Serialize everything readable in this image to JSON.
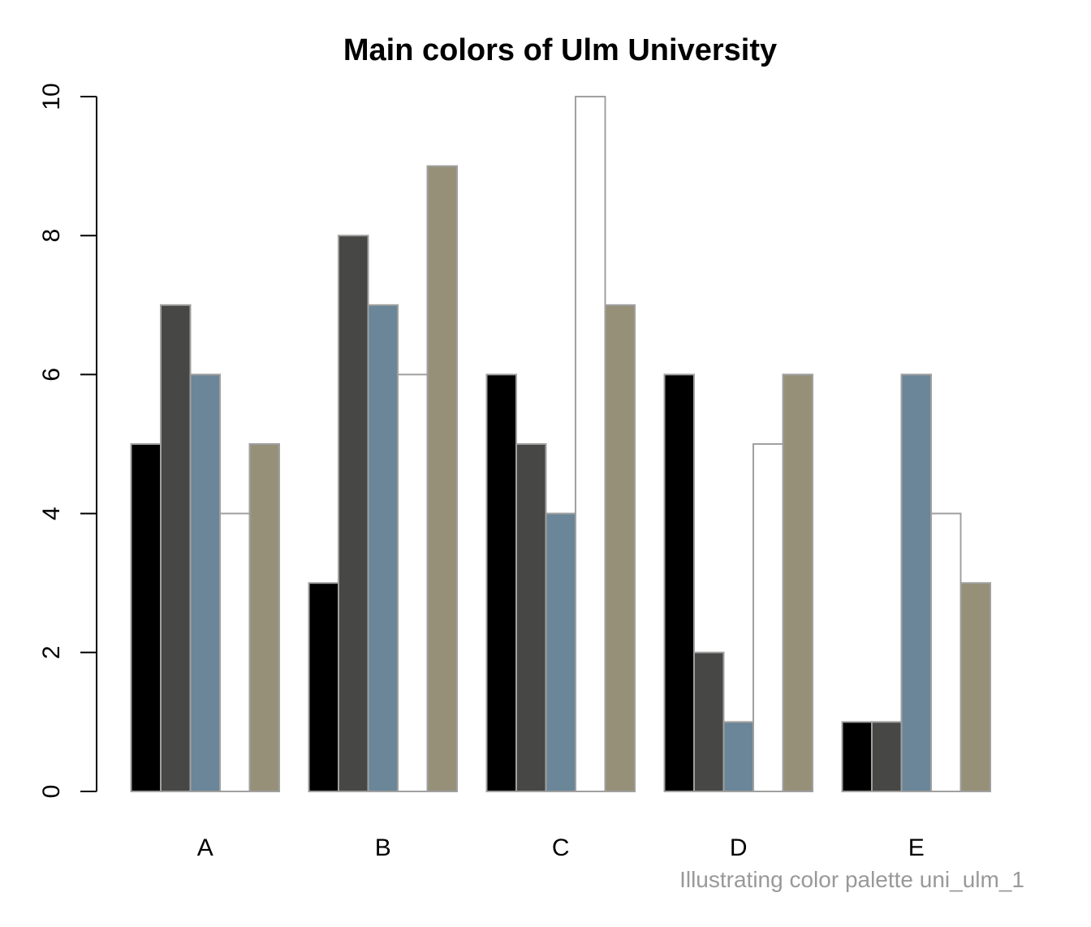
{
  "chart_data": {
    "type": "bar",
    "title": "Main colors of Ulm University",
    "caption": "Illustrating color palette uni_ulm_1",
    "xlabel": "",
    "ylabel": "",
    "categories": [
      "A",
      "B",
      "C",
      "D",
      "E"
    ],
    "yticks": [
      "0",
      "2",
      "4",
      "6",
      "8",
      "10"
    ],
    "ylim": [
      0,
      10
    ],
    "grid": false,
    "legend": "none",
    "series": [
      {
        "color": "#000000",
        "values": [
          5,
          3,
          6,
          6,
          1
        ]
      },
      {
        "color": "#474745",
        "values": [
          7,
          8,
          5,
          2,
          1
        ]
      },
      {
        "color": "#6a8698",
        "values": [
          6,
          7,
          4,
          1,
          6
        ]
      },
      {
        "color": "#ffffff",
        "values": [
          4,
          6,
          10,
          5,
          4
        ]
      },
      {
        "color": "#979079",
        "values": [
          5,
          9,
          7,
          6,
          3
        ]
      }
    ],
    "bar_border_color": "#a0a0a0",
    "caption_color": "#999999"
  }
}
